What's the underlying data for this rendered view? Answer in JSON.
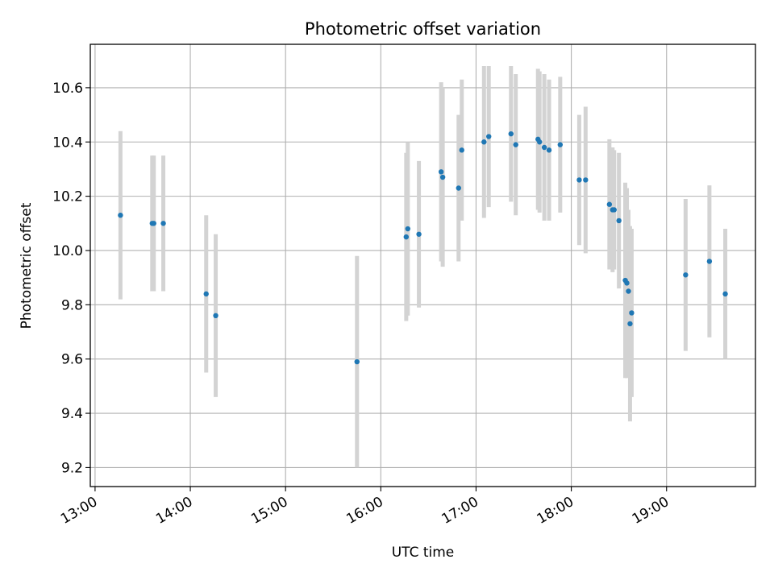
{
  "chart_data": {
    "type": "scatter",
    "title": "Photometric offset variation",
    "xlabel": "UTC time",
    "ylabel": "Photometric offset",
    "grid": true,
    "legend": "none",
    "xlim": [
      "12:57",
      "19:56"
    ],
    "ylim": [
      9.13,
      10.76
    ],
    "xticks": [
      "13:00",
      "14:00",
      "15:00",
      "16:00",
      "17:00",
      "18:00",
      "19:00"
    ],
    "yticks": [
      "9.2",
      "9.4",
      "9.6",
      "9.8",
      "10.0",
      "10.2",
      "10.4",
      "10.6"
    ],
    "colors": {
      "point": "#1f77b4",
      "errorbar": "#d3d3d3",
      "grid": "#b0b0b0"
    },
    "series": [
      {
        "points": [
          {
            "x": "13:16",
            "y": 10.13,
            "err": 0.31
          },
          {
            "x": "13:36",
            "y": 10.1,
            "err": 0.25
          },
          {
            "x": "13:37",
            "y": 10.1,
            "err": 0.25
          },
          {
            "x": "13:43",
            "y": 10.1,
            "err": 0.25
          },
          {
            "x": "14:10",
            "y": 9.84,
            "err": 0.29
          },
          {
            "x": "14:16",
            "y": 9.76,
            "err": 0.3
          },
          {
            "x": "15:45",
            "y": 9.59,
            "err": 0.39
          },
          {
            "x": "16:16",
            "y": 10.05,
            "err": 0.31
          },
          {
            "x": "16:17",
            "y": 10.08,
            "err": 0.32
          },
          {
            "x": "16:24",
            "y": 10.06,
            "err": 0.27
          },
          {
            "x": "16:38",
            "y": 10.29,
            "err": 0.33
          },
          {
            "x": "16:39",
            "y": 10.27,
            "err": 0.33
          },
          {
            "x": "16:49",
            "y": 10.23,
            "err": 0.27
          },
          {
            "x": "16:51",
            "y": 10.37,
            "err": 0.26
          },
          {
            "x": "17:05",
            "y": 10.4,
            "err": 0.28
          },
          {
            "x": "17:08",
            "y": 10.42,
            "err": 0.26
          },
          {
            "x": "17:22",
            "y": 10.43,
            "err": 0.25
          },
          {
            "x": "17:25",
            "y": 10.39,
            "err": 0.26
          },
          {
            "x": "17:39",
            "y": 10.41,
            "err": 0.26
          },
          {
            "x": "17:40",
            "y": 10.4,
            "err": 0.26
          },
          {
            "x": "17:43",
            "y": 10.38,
            "err": 0.27
          },
          {
            "x": "17:46",
            "y": 10.37,
            "err": 0.26
          },
          {
            "x": "17:53",
            "y": 10.39,
            "err": 0.25
          },
          {
            "x": "18:05",
            "y": 10.26,
            "err": 0.24
          },
          {
            "x": "18:09",
            "y": 10.26,
            "err": 0.27
          },
          {
            "x": "18:24",
            "y": 10.17,
            "err": 0.24
          },
          {
            "x": "18:26",
            "y": 10.15,
            "err": 0.23
          },
          {
            "x": "18:27",
            "y": 10.15,
            "err": 0.22
          },
          {
            "x": "18:30",
            "y": 10.11,
            "err": 0.25
          },
          {
            "x": "18:34",
            "y": 9.89,
            "err": 0.36
          },
          {
            "x": "18:35",
            "y": 9.88,
            "err": 0.35
          },
          {
            "x": "18:36",
            "y": 9.85,
            "err": 0.3
          },
          {
            "x": "18:37",
            "y": 9.73,
            "err": 0.36
          },
          {
            "x": "18:38",
            "y": 9.77,
            "err": 0.31
          },
          {
            "x": "19:12",
            "y": 9.91,
            "err": 0.28
          },
          {
            "x": "19:27",
            "y": 9.96,
            "err": 0.28
          },
          {
            "x": "19:37",
            "y": 9.84,
            "err": 0.24
          }
        ]
      }
    ]
  }
}
